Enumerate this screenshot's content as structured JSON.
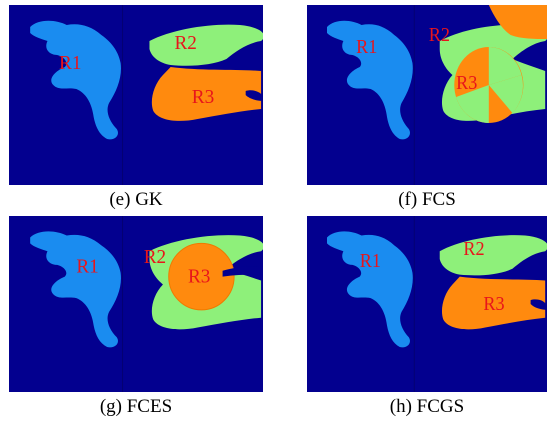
{
  "panels": [
    {
      "id": "e",
      "caption": "(e) GK",
      "regions": [
        "R1",
        "R2",
        "R3"
      ]
    },
    {
      "id": "f",
      "caption": "(f) FCS",
      "regions": [
        "R1",
        "R2",
        "R3"
      ]
    },
    {
      "id": "g",
      "caption": "(g) FCES",
      "regions": [
        "R1",
        "R2",
        "R3"
      ]
    },
    {
      "id": "h",
      "caption": "(h) FCGS",
      "regions": [
        "R1",
        "R2",
        "R3"
      ]
    }
  ],
  "colors": {
    "background": "#03008f",
    "region_r1": "#1a8cf0",
    "region_r2": "#8ef07a",
    "region_r3": "#ff8a0e",
    "label": "#e8151b"
  }
}
